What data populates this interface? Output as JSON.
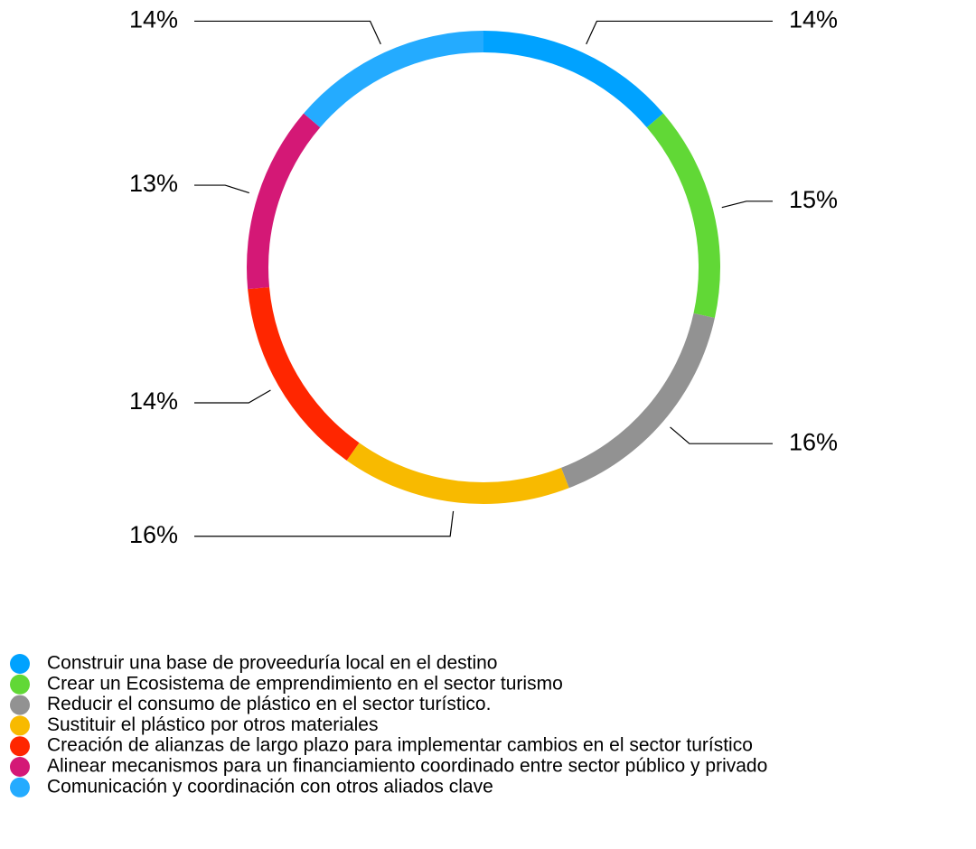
{
  "chart_data": {
    "type": "donut",
    "categories": [
      "Construir una base de proveeduría local en el destino",
      "Crear un Ecosistema de emprendimiento en el sector turismo",
      "Reducir el consumo de plástico en el sector turístico.",
      "Sustituir el plástico por otros materiales",
      "Creación de alianzas de largo plazo para implementar cambios en el sector turístico",
      "Alinear mecanismos para un financiamiento coordinado entre sector público y privado",
      "Comunicación y coordinación con otros aliados clave"
    ],
    "values": [
      14,
      15,
      16,
      16,
      14,
      13,
      14
    ],
    "value_labels": [
      "14%",
      "15%",
      "16%",
      "16%",
      "14%",
      "13%",
      "14%"
    ],
    "colors": [
      "#00a2ff",
      "#61d836",
      "#929292",
      "#f8ba00",
      "#ff2600",
      "#d41876",
      "#24abff"
    ],
    "legend": "bottom-left"
  }
}
